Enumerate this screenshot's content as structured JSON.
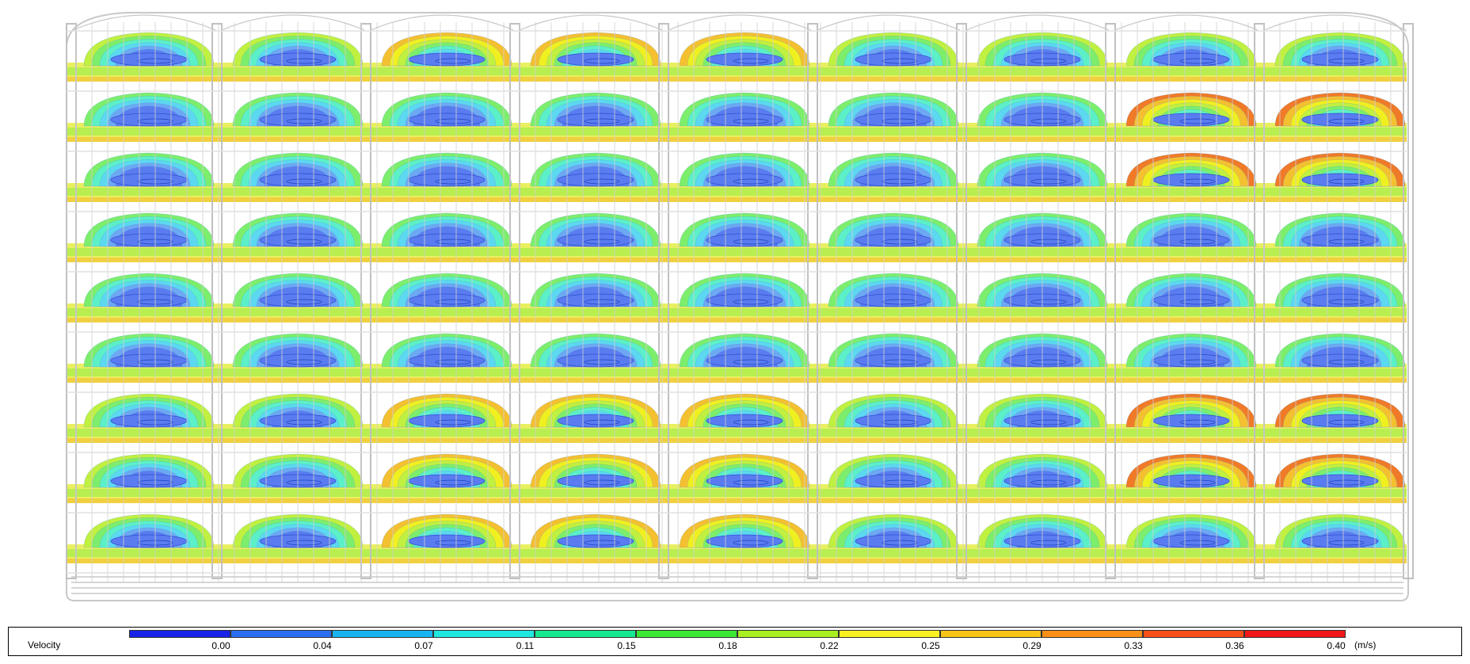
{
  "legend": {
    "title": "Velocity",
    "unit": "(m/s)",
    "ticks": [
      "0.00",
      "0.04",
      "0.07",
      "0.11",
      "0.15",
      "0.18",
      "0.22",
      "0.25",
      "0.29",
      "0.33",
      "0.36",
      "0.40"
    ],
    "colors": [
      "#1a23e8",
      "#2a6ff0",
      "#18b4f0",
      "#1ee8e0",
      "#16e890",
      "#3ce834",
      "#a8ee20",
      "#f8f020",
      "#f8c418",
      "#f89018",
      "#f85018",
      "#f01818"
    ]
  },
  "palette": {
    "background": "#ffffff",
    "wireframe": "#c8c8c8",
    "slow_core": "#5a7cf0",
    "mid_flow": "#5cf0e8",
    "fast_flow": "#f0f020",
    "hot_flow": "#f07a28"
  }
}
